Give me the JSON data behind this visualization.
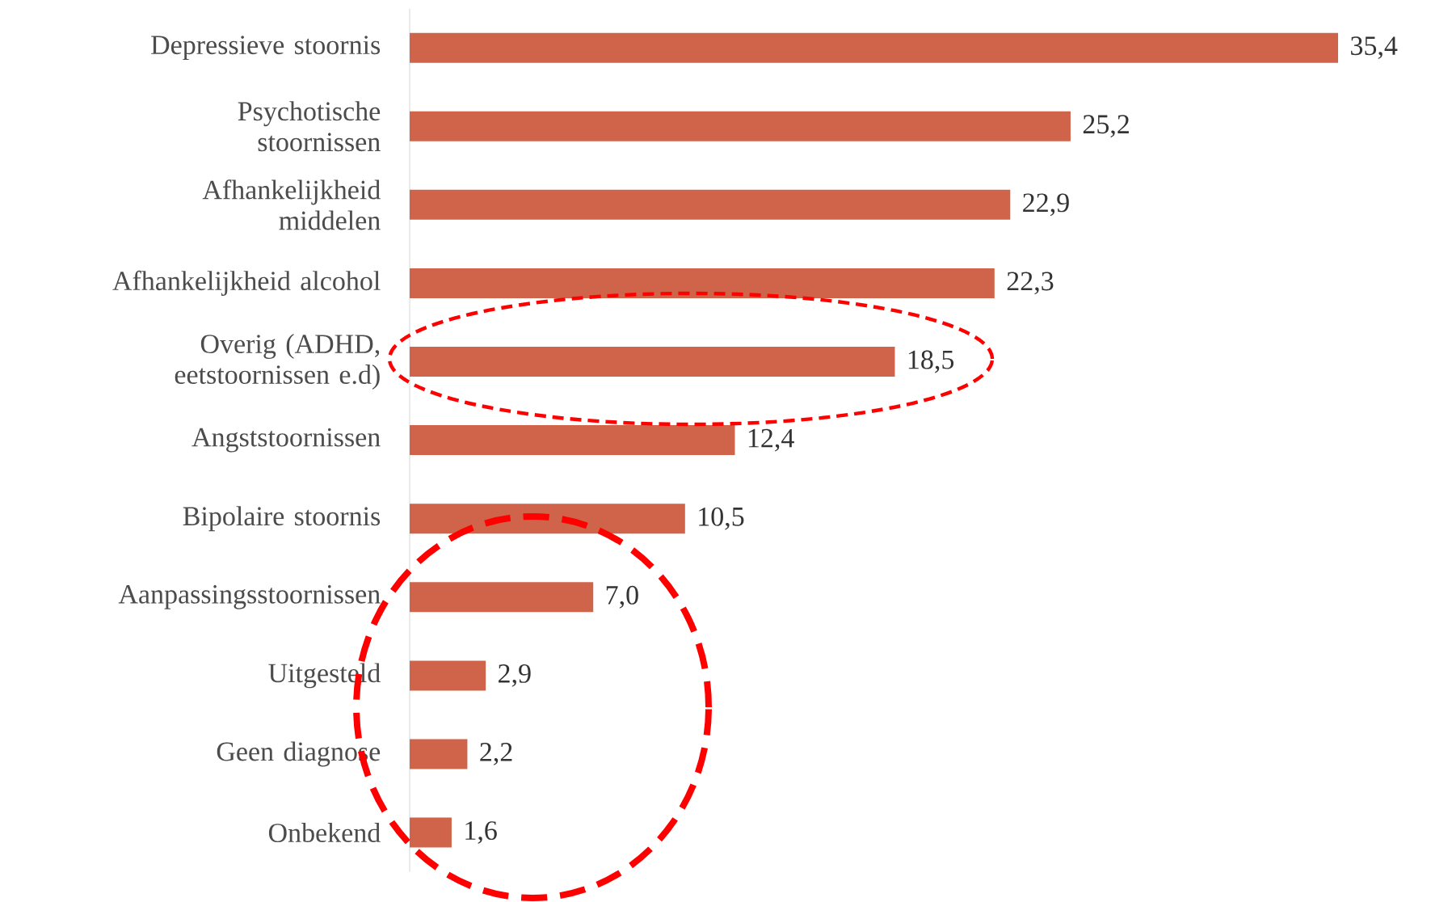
{
  "chart_data": {
    "type": "bar",
    "orientation": "horizontal",
    "categories": [
      "Depressieve stoornis",
      "Psychotische stoornissen",
      "Afhankelijkheid middelen",
      "Afhankelijkheid alcohol",
      "Overig (ADHD, eetstoornissen e.d)",
      "Angststoornissen",
      "Bipolaire stoornis",
      "Aanpassingsstoornissen",
      "Uitgesteld",
      "Geen diagnose",
      "Onbekend"
    ],
    "values": [
      35.4,
      25.2,
      22.9,
      22.3,
      18.5,
      12.4,
      10.5,
      7.0,
      2.9,
      2.2,
      1.6
    ],
    "value_labels": [
      "35,4",
      "25,2",
      "22,9",
      "22,3",
      "18,5",
      "12,4",
      "10,5",
      "7,0",
      "2,9",
      "2,2",
      "1,6"
    ],
    "color": "#d0644b",
    "tick_labels": "y"
  }
}
